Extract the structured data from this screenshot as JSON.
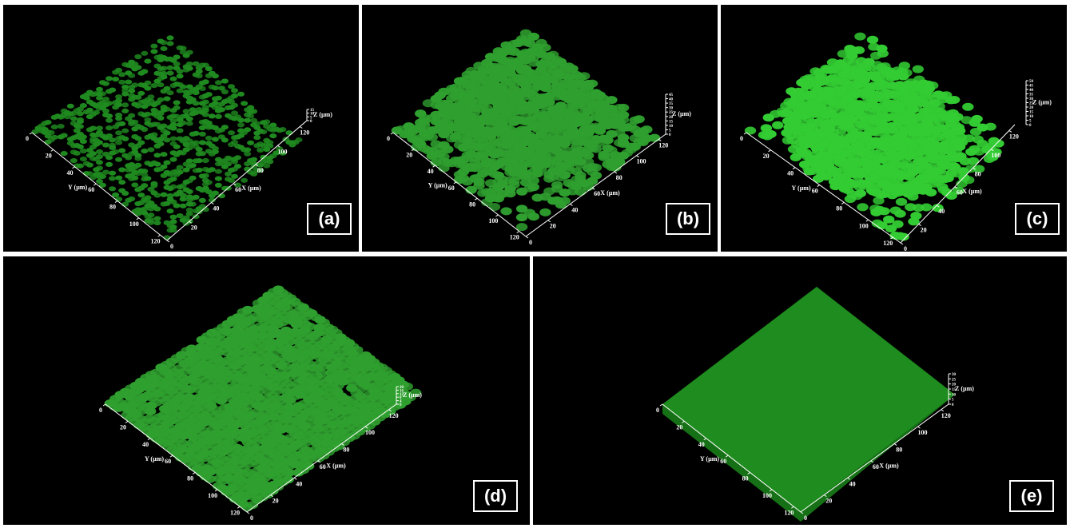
{
  "colors": {
    "background": "#000000",
    "divider": "#ffffff",
    "axis": "#ffffff",
    "biofilm_sparse": "#1f8a1f",
    "biofilm_dense": "#2fa02f",
    "biofilm_bright": "#33cc33",
    "biofilm_flat": "#1e8c1e"
  },
  "axes": {
    "x_label": "X (µm)",
    "y_label": "Y (µm)",
    "z_label": "Z (µm)",
    "x_ticks": [
      "0",
      "20",
      "40",
      "60",
      "80",
      "100",
      "120"
    ],
    "y_ticks": [
      "0",
      "20",
      "40",
      "60",
      "80",
      "100",
      "120"
    ]
  },
  "panels": [
    {
      "id": "a",
      "label": "(a)",
      "z_ticks": [
        "0",
        "5",
        "10",
        "15"
      ],
      "coverage": 0.35
    },
    {
      "id": "b",
      "label": "(b)",
      "z_ticks": [
        "0",
        "5",
        "10",
        "15",
        "20",
        "25",
        "30",
        "35",
        "40",
        "45"
      ],
      "coverage": 0.8
    },
    {
      "id": "c",
      "label": "(c)",
      "z_ticks": [
        "0",
        "5",
        "10",
        "15",
        "20",
        "25",
        "30",
        "35",
        "40",
        "45",
        "50"
      ],
      "coverage": 0.9
    },
    {
      "id": "d",
      "label": "(d)",
      "z_ticks": [
        "0",
        "4",
        "8",
        "12",
        "16",
        "20"
      ],
      "coverage": 0.92
    },
    {
      "id": "e",
      "label": "(e)",
      "z_ticks": [
        "0",
        "5",
        "10",
        "15",
        "20",
        "25",
        "30"
      ],
      "coverage": 1.0
    }
  ]
}
